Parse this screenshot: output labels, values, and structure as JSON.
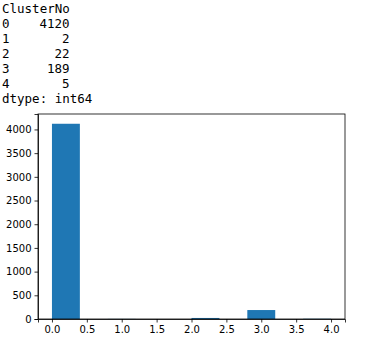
{
  "output": {
    "header": "ClusterNo",
    "rows": [
      {
        "index": 0,
        "count": 4120
      },
      {
        "index": 1,
        "count": 2
      },
      {
        "index": 2,
        "count": 22
      },
      {
        "index": 3,
        "count": 189
      },
      {
        "index": 4,
        "count": 5
      }
    ],
    "footer": "dtype: int64"
  },
  "chart_data": {
    "type": "histogram",
    "bins": [
      0,
      0.4,
      0.8,
      1.2,
      1.6,
      2,
      2.4,
      2.8,
      3.2,
      3.6,
      4
    ],
    "values": [
      4120,
      0,
      2,
      0,
      0,
      22,
      0,
      189,
      0,
      5
    ],
    "color": "#1f77b4",
    "xlim": [
      -0.2,
      4.2
    ],
    "xticks": [
      {
        "value": 0,
        "label": "0.0"
      },
      0.5,
      {
        "value": 1,
        "label": "1.0"
      },
      1.5,
      {
        "value": 2,
        "label": "2.0"
      },
      2.5,
      {
        "value": 3,
        "label": "3.0"
      },
      3.5,
      {
        "value": 4,
        "label": "4.0"
      }
    ],
    "ylim": [
      0,
      4326
    ],
    "yticks": [
      0,
      500,
      1000,
      1500,
      2000,
      2500,
      3000,
      3500,
      4000
    ],
    "grid": false
  }
}
